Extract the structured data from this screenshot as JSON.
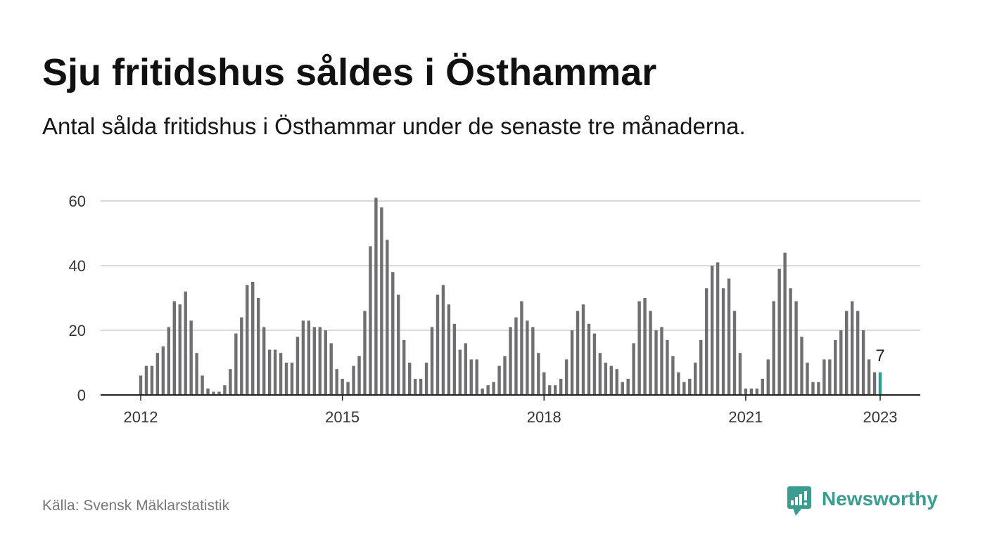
{
  "header": {
    "title": "Sju fritidshus såldes i Östhammar",
    "subtitle": "Antal sålda fritidshus i Östhammar under de senaste tre månaderna."
  },
  "colors": {
    "bar": "#6f6f73",
    "highlight": "#2a9d8f",
    "grid": "#dadada",
    "axis": "#222222",
    "brand": "#3a9d90"
  },
  "chart_data": {
    "type": "bar",
    "x": [
      "2012-01",
      "2012-02",
      "2012-03",
      "2012-04",
      "2012-05",
      "2012-06",
      "2012-07",
      "2012-08",
      "2012-09",
      "2012-10",
      "2012-11",
      "2012-12",
      "2013-01",
      "2013-02",
      "2013-03",
      "2013-04",
      "2013-05",
      "2013-06",
      "2013-07",
      "2013-08",
      "2013-09",
      "2013-10",
      "2013-11",
      "2013-12",
      "2014-01",
      "2014-02",
      "2014-03",
      "2014-04",
      "2014-05",
      "2014-06",
      "2014-07",
      "2014-08",
      "2014-09",
      "2014-10",
      "2014-11",
      "2014-12",
      "2015-01",
      "2015-02",
      "2015-03",
      "2015-04",
      "2015-05",
      "2015-06",
      "2015-07",
      "2015-08",
      "2015-09",
      "2015-10",
      "2015-11",
      "2015-12",
      "2016-01",
      "2016-02",
      "2016-03",
      "2016-04",
      "2016-05",
      "2016-06",
      "2016-07",
      "2016-08",
      "2016-09",
      "2016-10",
      "2016-11",
      "2016-12",
      "2017-01",
      "2017-02",
      "2017-03",
      "2017-04",
      "2017-05",
      "2017-06",
      "2017-07",
      "2017-08",
      "2017-09",
      "2017-10",
      "2017-11",
      "2017-12",
      "2018-01",
      "2018-02",
      "2018-03",
      "2018-04",
      "2018-05",
      "2018-06",
      "2018-07",
      "2018-08",
      "2018-09",
      "2018-10",
      "2018-11",
      "2018-12",
      "2019-01",
      "2019-02",
      "2019-03",
      "2019-04",
      "2019-05",
      "2019-06",
      "2019-07",
      "2019-08",
      "2019-09",
      "2019-10",
      "2019-11",
      "2019-12",
      "2020-01",
      "2020-02",
      "2020-03",
      "2020-04",
      "2020-05",
      "2020-06",
      "2020-07",
      "2020-08",
      "2020-09",
      "2020-10",
      "2020-11",
      "2020-12",
      "2021-01",
      "2021-02",
      "2021-03",
      "2021-04",
      "2021-05",
      "2021-06",
      "2021-07",
      "2021-08",
      "2021-09",
      "2021-10",
      "2021-11",
      "2021-12",
      "2022-01",
      "2022-02",
      "2022-03",
      "2022-04",
      "2022-05",
      "2022-06",
      "2022-07",
      "2022-08",
      "2022-09",
      "2022-10",
      "2022-11",
      "2022-12",
      "2023-01"
    ],
    "values": [
      6,
      9,
      9,
      13,
      15,
      21,
      29,
      28,
      32,
      23,
      13,
      6,
      2,
      1,
      1,
      3,
      8,
      19,
      24,
      34,
      35,
      30,
      21,
      14,
      14,
      13,
      10,
      10,
      18,
      23,
      23,
      21,
      21,
      20,
      16,
      8,
      5,
      4,
      9,
      12,
      26,
      46,
      61,
      58,
      48,
      38,
      31,
      17,
      10,
      5,
      5,
      10,
      21,
      31,
      34,
      28,
      22,
      14,
      16,
      11,
      11,
      2,
      3,
      4,
      9,
      12,
      21,
      24,
      29,
      23,
      21,
      13,
      7,
      3,
      3,
      5,
      11,
      20,
      26,
      28,
      22,
      19,
      13,
      10,
      9,
      8,
      4,
      5,
      16,
      29,
      30,
      26,
      20,
      21,
      17,
      12,
      7,
      4,
      5,
      10,
      17,
      33,
      40,
      41,
      33,
      36,
      26,
      13,
      2,
      2,
      2,
      5,
      11,
      29,
      39,
      44,
      33,
      29,
      18,
      10,
      4,
      4,
      11,
      11,
      17,
      20,
      26,
      29,
      26,
      20,
      11,
      7,
      7
    ],
    "ylim": [
      0,
      60
    ],
    "yticks": [
      0,
      20,
      40,
      60
    ],
    "xticks": [
      {
        "value": "2012-01",
        "label": "2012"
      },
      {
        "value": "2015-01",
        "label": "2015"
      },
      {
        "value": "2018-01",
        "label": "2018"
      },
      {
        "value": "2021-01",
        "label": "2021"
      },
      {
        "value": "2023-01",
        "label": "2023"
      }
    ],
    "grid": true,
    "highlight": {
      "x": "2023-01"
    },
    "annotations": [
      {
        "x": "2023-01",
        "text": "7"
      }
    ]
  },
  "footer": {
    "source": "Källa: Svensk Mäklarstatistik",
    "logo_text": "Newsworthy",
    "logo_icon": "newsworthy-logo-icon"
  }
}
